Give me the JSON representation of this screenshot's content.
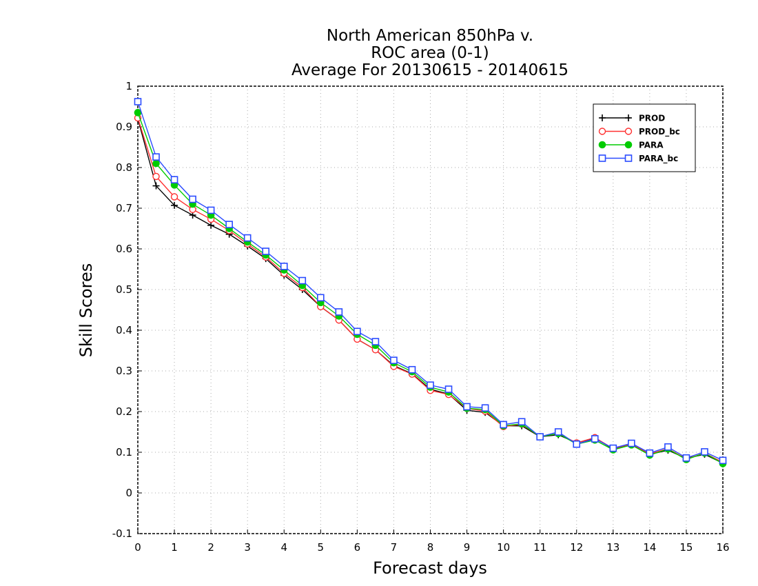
{
  "chart_data": {
    "type": "line",
    "title_lines": [
      "North American 850hPa v.",
      "ROC area (0-1)",
      "Average For 20130615 - 20140615"
    ],
    "xlabel": "Forecast days",
    "ylabel": "Skill Scores",
    "xlim": [
      0,
      16
    ],
    "ylim": [
      -0.1,
      1
    ],
    "xticks": [
      "0",
      "1",
      "2",
      "3",
      "4",
      "5",
      "6",
      "7",
      "8",
      "9",
      "10",
      "11",
      "12",
      "13",
      "14",
      "15",
      "16"
    ],
    "yticks": [
      "-0.1",
      "0",
      "0.1",
      "0.2",
      "0.3",
      "0.4",
      "0.5",
      "0.6",
      "0.7",
      "0.8",
      "0.9",
      "1"
    ],
    "grid": true,
    "legend_position": "top-right",
    "x": [
      0,
      0.5,
      1,
      1.5,
      2,
      2.5,
      3,
      3.5,
      4,
      4.5,
      5,
      5.5,
      6,
      6.5,
      7,
      7.5,
      8,
      8.5,
      9,
      9.5,
      10,
      10.5,
      11,
      11.5,
      12,
      12.5,
      13,
      13.5,
      14,
      14.5,
      15,
      15.5,
      16
    ],
    "series": [
      {
        "name": "PROD",
        "color": "#000000",
        "marker": "plus",
        "values": [
          0.92,
          0.755,
          0.707,
          0.683,
          0.658,
          0.636,
          0.607,
          0.576,
          0.535,
          0.5,
          0.458,
          0.425,
          0.378,
          0.352,
          0.313,
          0.293,
          0.255,
          0.243,
          0.203,
          0.198,
          0.165,
          0.165,
          0.138,
          0.143,
          0.123,
          0.135,
          0.108,
          0.118,
          0.095,
          0.105,
          0.085,
          0.095,
          0.073
        ]
      },
      {
        "name": "PROD_bc",
        "color": "#ff3030",
        "marker": "open-circle",
        "values": [
          0.922,
          0.778,
          0.728,
          0.697,
          0.673,
          0.645,
          0.612,
          0.58,
          0.54,
          0.505,
          0.458,
          0.425,
          0.378,
          0.352,
          0.311,
          0.292,
          0.252,
          0.242,
          0.208,
          0.201,
          0.163,
          0.169,
          0.138,
          0.146,
          0.123,
          0.136,
          0.109,
          0.12,
          0.096,
          0.109,
          0.083,
          0.098,
          0.075
        ]
      },
      {
        "name": "PARA",
        "color": "#00cc00",
        "marker": "filled-circle",
        "values": [
          0.935,
          0.81,
          0.757,
          0.71,
          0.683,
          0.65,
          0.617,
          0.585,
          0.548,
          0.51,
          0.468,
          0.435,
          0.39,
          0.363,
          0.32,
          0.298,
          0.26,
          0.248,
          0.208,
          0.205,
          0.165,
          0.17,
          0.138,
          0.146,
          0.12,
          0.13,
          0.106,
          0.118,
          0.093,
          0.108,
          0.082,
          0.098,
          0.072
        ]
      },
      {
        "name": "PARA_bc",
        "color": "#2a4bff",
        "marker": "open-square",
        "values": [
          0.962,
          0.826,
          0.77,
          0.722,
          0.695,
          0.66,
          0.627,
          0.594,
          0.557,
          0.522,
          0.48,
          0.445,
          0.397,
          0.372,
          0.326,
          0.303,
          0.265,
          0.255,
          0.212,
          0.209,
          0.168,
          0.175,
          0.138,
          0.15,
          0.12,
          0.133,
          0.11,
          0.122,
          0.098,
          0.113,
          0.086,
          0.101,
          0.08
        ]
      }
    ]
  }
}
